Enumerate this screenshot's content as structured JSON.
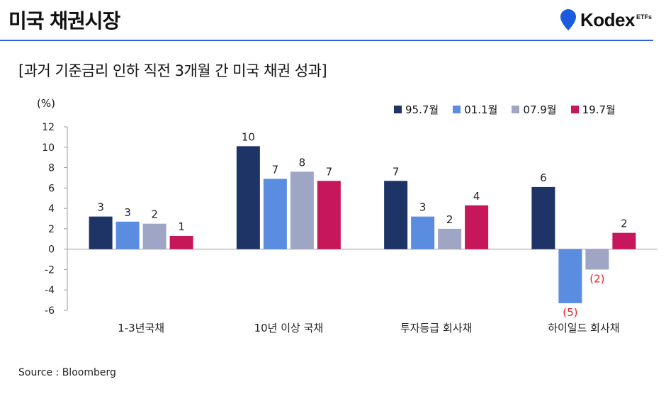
{
  "header": {
    "title": "미국 채권시장"
  },
  "logo": {
    "name": "Kodex",
    "suffix": "ETFs",
    "color": "#1a5be0"
  },
  "source": "Source : Bloomberg",
  "colors": {
    "95.7월": "#1f3466",
    "01.1월": "#5a8de0",
    "07.9월": "#9fa6c5",
    "19.7월": "#c5175a",
    "negative_label": "#e0262c",
    "accent_rule": "#2d62d8"
  },
  "chart_data": {
    "type": "bar",
    "title": "[과거 기준금리 인하 직전 3개월 간 미국 채권 성과]",
    "ylabel": "(%)",
    "ylim": [
      -6,
      12
    ],
    "yticks": [
      "12",
      "10",
      "8",
      "6",
      "4",
      "2",
      "0",
      "-2",
      "-4",
      "-6"
    ],
    "grid": false,
    "legend_position": "top-right",
    "categories": [
      "1-3년국채",
      "10년 이상 국채",
      "투자등급 회사채",
      "하이일드 회사채"
    ],
    "series": [
      {
        "name": "95.7월",
        "values": [
          3.2,
          10.1,
          6.7,
          6.1
        ],
        "labels": [
          "3",
          "10",
          "7",
          "6"
        ]
      },
      {
        "name": "01.1월",
        "values": [
          2.7,
          6.9,
          3.2,
          -5.3
        ],
        "labels": [
          "3",
          "7",
          "3",
          "(5)"
        ]
      },
      {
        "name": "07.9월",
        "values": [
          2.5,
          7.6,
          2.0,
          -2.0
        ],
        "labels": [
          "2",
          "8",
          "2",
          "(2)"
        ]
      },
      {
        "name": "19.7월",
        "values": [
          1.3,
          6.7,
          4.3,
          1.6
        ],
        "labels": [
          "1",
          "7",
          "4",
          "2"
        ]
      }
    ]
  }
}
